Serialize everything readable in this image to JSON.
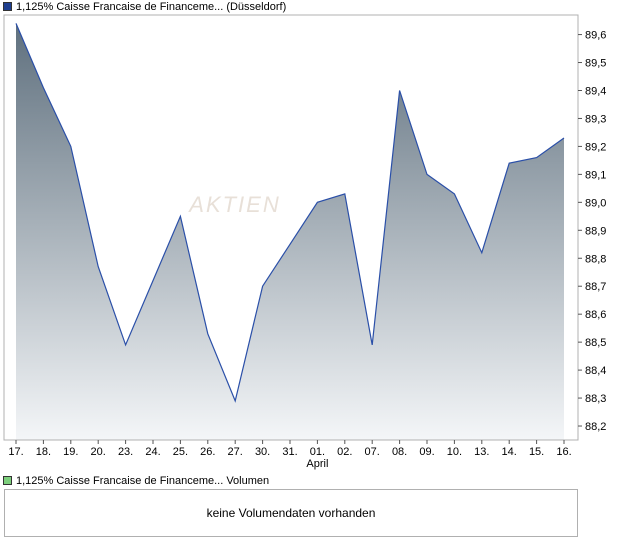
{
  "legend": {
    "main": "1,125% Caisse Francaise de Financeme... (Düsseldorf)",
    "volume": "1,125% Caisse Francaise de Financeme... Volumen"
  },
  "colors": {
    "main_swatch": "#1f3f8f",
    "volume_swatch": "#7ccf7c",
    "line": "#2a4fa8",
    "area_top": "#5f707e",
    "area_bottom": "#f4f6f8",
    "grid": "#dddddd",
    "frame": "#b0b0b0"
  },
  "watermark": "AKTIEN",
  "volume_panel": {
    "message": "keine Volumendaten vorhanden"
  },
  "chart_data": {
    "type": "area",
    "x": [
      "17.",
      "18.",
      "19.",
      "20.",
      "23.",
      "24.",
      "25.",
      "26.",
      "27.",
      "30.",
      "31.",
      "01.",
      "02.",
      "07.",
      "08.",
      "09.",
      "10.",
      "13.",
      "14.",
      "15.",
      "16."
    ],
    "month_labels": [
      {
        "index": 11,
        "label": "April"
      }
    ],
    "values": [
      89.64,
      89.41,
      89.2,
      88.77,
      88.49,
      88.72,
      88.95,
      88.53,
      88.29,
      88.7,
      88.85,
      89.0,
      89.03,
      88.49,
      89.4,
      89.1,
      89.03,
      88.82,
      89.14,
      89.16,
      89.23
    ],
    "yticks": [
      "89,6",
      "89,5",
      "89,4",
      "89,3",
      "89,2",
      "89,1",
      "89,0",
      "88,9",
      "88,8",
      "88,7",
      "88,6",
      "88,5",
      "88,4",
      "88,3",
      "88,2"
    ],
    "ylim": [
      88.15,
      89.67
    ],
    "grid": false,
    "y_axis_side": "right"
  }
}
